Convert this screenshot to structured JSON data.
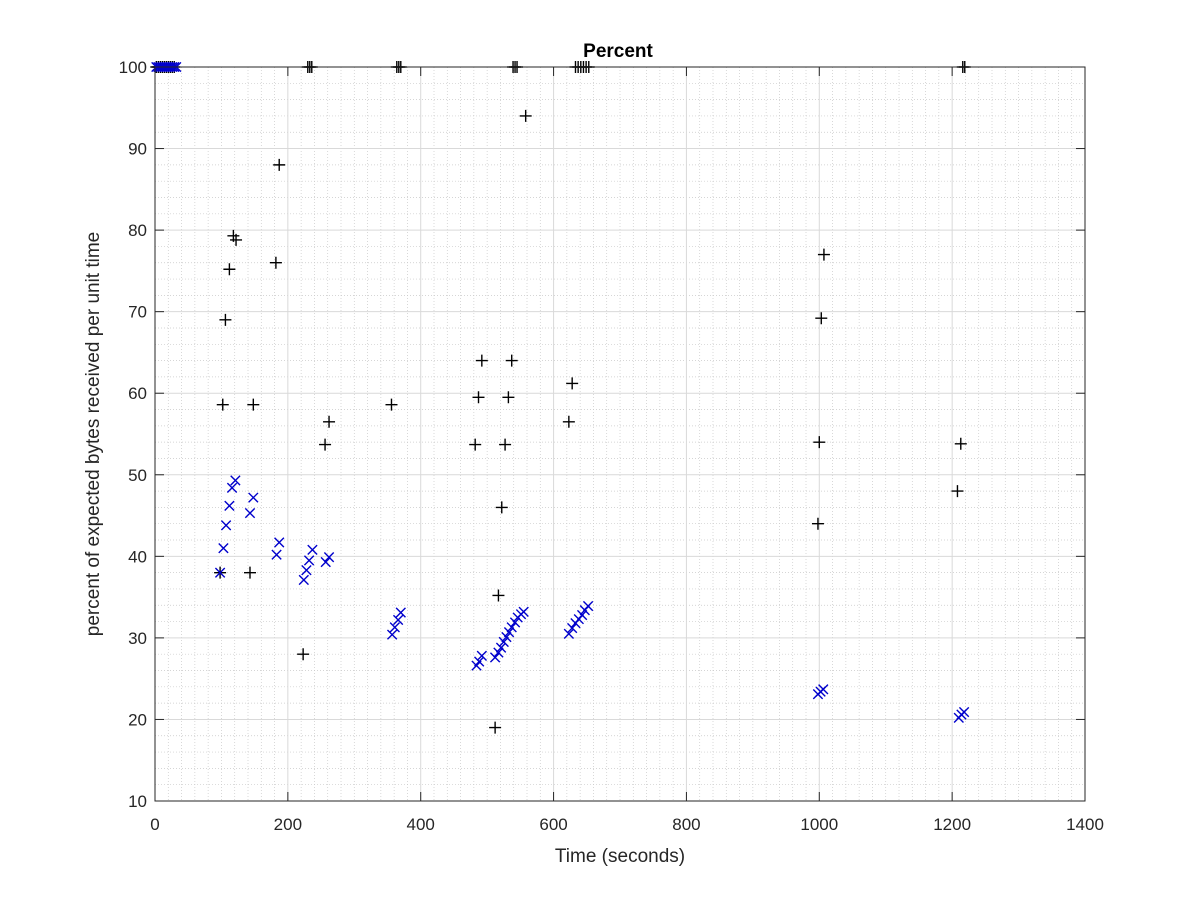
{
  "chart_data": {
    "type": "scatter",
    "title": "Percent",
    "xlabel": "Time (seconds)",
    "ylabel": "percent of expected bytes received per unit time",
    "xlim": [
      0,
      1400
    ],
    "ylim": [
      10,
      100
    ],
    "xticks": [
      0,
      200,
      400,
      600,
      800,
      1000,
      1200,
      1400
    ],
    "yticks": [
      10,
      20,
      30,
      40,
      50,
      60,
      70,
      80,
      90,
      100
    ],
    "xtick_labels": [
      "0",
      "200",
      "400",
      "600",
      "800",
      "1000",
      "1200",
      "1400"
    ],
    "ytick_labels": [
      "10",
      "20",
      "30",
      "40",
      "50",
      "60",
      "70",
      "80",
      "90",
      "100"
    ],
    "grid": true,
    "minor_grid": true,
    "legend": "none",
    "series": [
      {
        "marker": "plus",
        "color": "#000000",
        "points": [
          [
            2,
            100
          ],
          [
            5,
            100
          ],
          [
            8,
            100
          ],
          [
            11,
            100
          ],
          [
            14,
            100
          ],
          [
            17,
            100
          ],
          [
            20,
            100
          ],
          [
            23,
            100
          ],
          [
            26,
            100
          ],
          [
            29,
            100
          ],
          [
            230,
            100
          ],
          [
            233,
            100
          ],
          [
            236,
            100
          ],
          [
            364,
            100
          ],
          [
            367,
            100
          ],
          [
            370,
            100
          ],
          [
            539,
            100
          ],
          [
            542,
            100
          ],
          [
            545,
            100
          ],
          [
            633,
            100
          ],
          [
            637,
            100
          ],
          [
            641,
            100
          ],
          [
            645,
            100
          ],
          [
            649,
            100
          ],
          [
            653,
            100
          ],
          [
            1216,
            100
          ],
          [
            1219,
            100
          ],
          [
            98,
            38
          ],
          [
            102,
            58.6
          ],
          [
            106,
            69
          ],
          [
            112,
            75.2
          ],
          [
            118,
            79.3
          ],
          [
            122,
            78.8
          ],
          [
            143,
            38
          ],
          [
            148,
            58.6
          ],
          [
            182,
            76
          ],
          [
            187,
            88
          ],
          [
            223,
            28
          ],
          [
            256,
            53.7
          ],
          [
            262,
            56.5
          ],
          [
            356,
            58.6
          ],
          [
            482,
            53.7
          ],
          [
            487,
            59.5
          ],
          [
            492,
            64
          ],
          [
            512,
            19
          ],
          [
            517,
            35.2
          ],
          [
            522,
            46
          ],
          [
            527,
            53.7
          ],
          [
            532,
            59.5
          ],
          [
            537,
            64
          ],
          [
            558,
            94
          ],
          [
            623,
            56.5
          ],
          [
            628,
            61.2
          ],
          [
            998,
            44
          ],
          [
            1000,
            54
          ],
          [
            1003,
            69.2
          ],
          [
            1007,
            77
          ],
          [
            1208,
            48
          ],
          [
            1213,
            53.8
          ]
        ]
      },
      {
        "marker": "x",
        "color": "#0000cc",
        "points": [
          [
            2,
            100
          ],
          [
            5,
            100
          ],
          [
            8,
            100
          ],
          [
            11,
            100
          ],
          [
            14,
            100
          ],
          [
            17,
            100
          ],
          [
            20,
            100
          ],
          [
            23,
            100
          ],
          [
            26,
            100
          ],
          [
            29,
            100
          ],
          [
            32,
            100
          ],
          [
            98,
            38
          ],
          [
            103,
            41
          ],
          [
            107,
            43.8
          ],
          [
            112,
            46.2
          ],
          [
            116,
            48.4
          ],
          [
            121,
            49.3
          ],
          [
            143,
            45.3
          ],
          [
            148,
            47.2
          ],
          [
            183,
            40.2
          ],
          [
            187,
            41.7
          ],
          [
            224,
            37.1
          ],
          [
            228,
            38.3
          ],
          [
            232,
            39.5
          ],
          [
            237,
            40.8
          ],
          [
            257,
            39.3
          ],
          [
            262,
            39.9
          ],
          [
            357,
            30.4
          ],
          [
            361,
            31.3
          ],
          [
            366,
            32.2
          ],
          [
            370,
            33.1
          ],
          [
            484,
            26.6
          ],
          [
            488,
            27.1
          ],
          [
            492,
            27.8
          ],
          [
            512,
            27.6
          ],
          [
            517,
            28.2
          ],
          [
            521,
            28.8
          ],
          [
            525,
            29.5
          ],
          [
            529,
            30.1
          ],
          [
            533,
            30.7
          ],
          [
            537,
            31.3
          ],
          [
            542,
            31.9
          ],
          [
            546,
            32.5
          ],
          [
            551,
            32.9
          ],
          [
            555,
            33.2
          ],
          [
            623,
            30.5
          ],
          [
            628,
            31.2
          ],
          [
            633,
            31.8
          ],
          [
            638,
            32.3
          ],
          [
            643,
            32.8
          ],
          [
            647,
            33.4
          ],
          [
            652,
            33.9
          ],
          [
            998,
            23.1
          ],
          [
            1002,
            23.4
          ],
          [
            1006,
            23.7
          ],
          [
            1210,
            20.2
          ],
          [
            1214,
            20.6
          ],
          [
            1218,
            20.9
          ]
        ]
      }
    ]
  }
}
